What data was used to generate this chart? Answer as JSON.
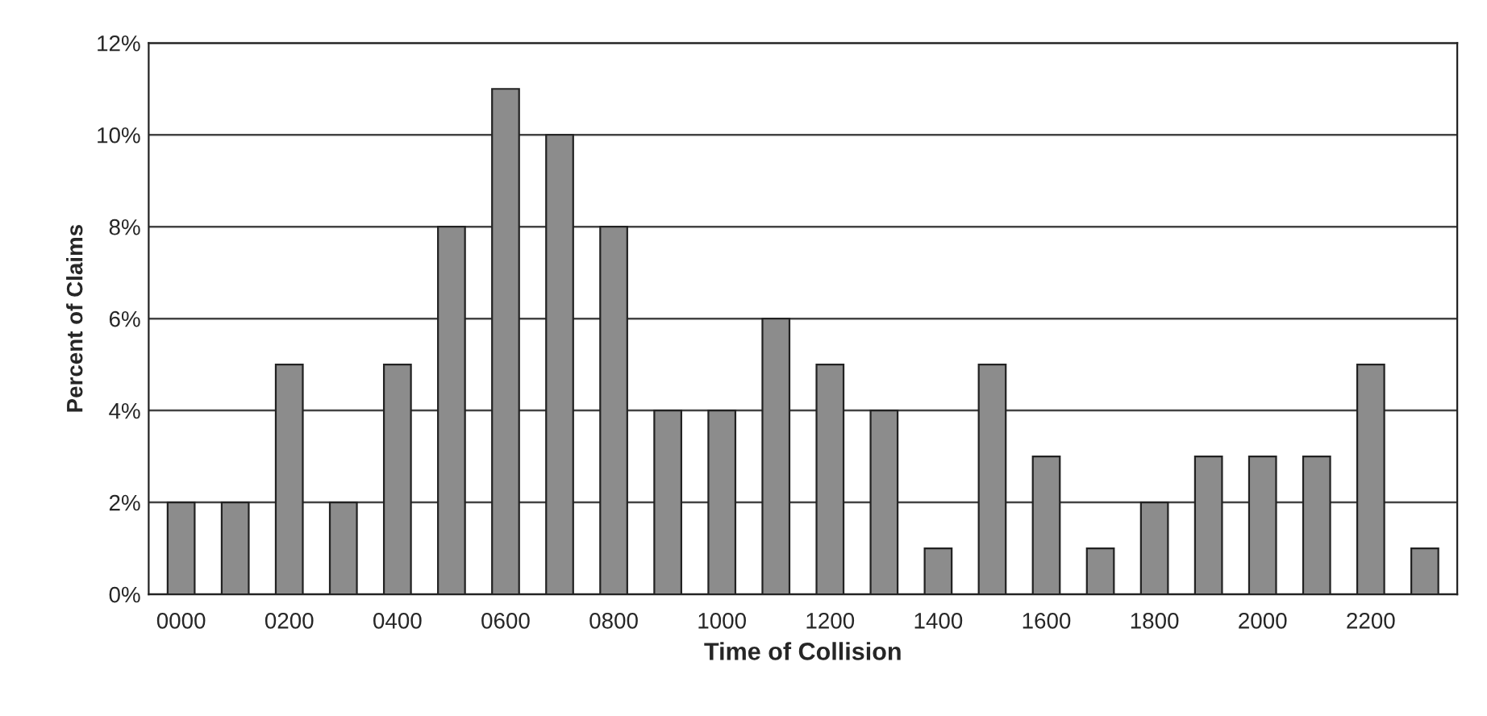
{
  "chart_data": {
    "type": "bar",
    "xlabel": "Time of Collision",
    "ylabel": "Percent of Claims",
    "categories": [
      "0000",
      null,
      "0200",
      null,
      "0400",
      null,
      "0600",
      null,
      "0800",
      null,
      "1000",
      null,
      "1200",
      null,
      "1400",
      null,
      "1600",
      null,
      "1800",
      null,
      "2000",
      null,
      "2200",
      null
    ],
    "values": [
      2,
      2,
      5,
      2,
      5,
      8,
      11,
      10,
      8,
      4,
      4,
      6,
      5,
      4,
      1,
      5,
      3,
      1,
      2,
      3,
      3,
      3,
      5,
      1
    ],
    "color": "#8c8c8c",
    "ylim": [
      0,
      12
    ],
    "yticks": [
      {
        "value": 0,
        "label": "0%"
      },
      {
        "value": 2,
        "label": "2%"
      },
      {
        "value": 4,
        "label": "4%"
      },
      {
        "value": 6,
        "label": "6%"
      },
      {
        "value": 8,
        "label": "8%"
      },
      {
        "value": 10,
        "label": "10%"
      },
      {
        "value": 12,
        "label": "12%"
      }
    ],
    "grid": "y"
  }
}
